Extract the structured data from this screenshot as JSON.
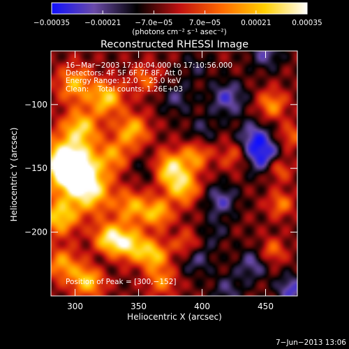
{
  "chart_data": {
    "type": "heatmap",
    "title": "Reconstructed RHESSI Image",
    "xlabel": "Heliocentric X (arcsec)",
    "ylabel": "Heliocentric Y (arcsec)",
    "xlim": [
      281,
      475
    ],
    "ylim": [
      -250,
      -58
    ],
    "x_ticks": [
      300,
      350,
      400,
      450
    ],
    "y_ticks": [
      -100,
      -150,
      -200
    ],
    "colorbar": {
      "min": -0.00035,
      "max": 0.00035,
      "ticks": [
        -0.00035,
        -0.00021,
        -7e-05,
        7e-05,
        0.00021,
        0.00035
      ],
      "tick_labels": [
        "−0.00035",
        "−0.00021",
        "−7.0e−05",
        "7.0e−05",
        "0.00021",
        "0.00035"
      ],
      "unit": "(photons cm⁻² s⁻¹ asec⁻²)",
      "stops": [
        "#1010ff",
        "#6a4aa8",
        "#000000",
        "#c01010",
        "#ff6a00",
        "#ffd000",
        "#ffffff"
      ]
    },
    "annotations": {
      "time_range": "16−Mar−2003 17:10:04.000 to 17:10:56.000",
      "detectors": "Detectors: 4F 5F 6F 7F 8F, Att 0",
      "energy": "Energy Range: 12.0 − 25.0 keV",
      "clean": "Clean:",
      "total_counts": "Total counts: 1.26E+03",
      "peak": "Position of Peak = [300,−152]"
    },
    "peak": {
      "x": 300,
      "y": -152
    },
    "blobs": [
      {
        "x": 292,
        "y": -145,
        "v": 0.00034,
        "s": 14
      },
      {
        "x": 300,
        "y": -152,
        "v": 0.00035,
        "s": 11
      },
      {
        "x": 312,
        "y": -168,
        "v": 0.0003,
        "s": 12
      },
      {
        "x": 288,
        "y": -188,
        "v": 0.00028,
        "s": 10
      },
      {
        "x": 305,
        "y": -118,
        "v": 0.00026,
        "s": 10
      },
      {
        "x": 325,
        "y": -95,
        "v": 0.00028,
        "s": 9
      },
      {
        "x": 300,
        "y": -84,
        "v": 0.00022,
        "s": 10
      },
      {
        "x": 345,
        "y": -120,
        "v": 0.00024,
        "s": 9
      },
      {
        "x": 330,
        "y": -140,
        "v": 0.00018,
        "s": 9
      },
      {
        "x": 328,
        "y": -205,
        "v": 0.00033,
        "s": 9
      },
      {
        "x": 345,
        "y": -210,
        "v": 0.00026,
        "s": 9
      },
      {
        "x": 310,
        "y": -238,
        "v": 0.00027,
        "s": 9
      },
      {
        "x": 345,
        "y": -180,
        "v": 0.00021,
        "s": 9
      },
      {
        "x": 365,
        "y": -185,
        "v": 0.00024,
        "s": 8
      },
      {
        "x": 375,
        "y": -150,
        "v": 0.0003,
        "s": 9
      },
      {
        "x": 385,
        "y": -165,
        "v": 0.00026,
        "s": 9
      },
      {
        "x": 395,
        "y": -140,
        "v": 0.00018,
        "s": 8
      },
      {
        "x": 362,
        "y": -218,
        "v": 0.00025,
        "s": 8
      },
      {
        "x": 368,
        "y": -238,
        "v": 0.00016,
        "s": 8
      },
      {
        "x": 290,
        "y": -225,
        "v": 0.0002,
        "s": 9
      },
      {
        "x": 388,
        "y": -210,
        "v": 0.00014,
        "s": 8
      },
      {
        "x": 455,
        "y": -100,
        "v": 0.00018,
        "s": 8
      },
      {
        "x": 460,
        "y": -150,
        "v": 0.00016,
        "s": 7
      },
      {
        "x": 462,
        "y": -178,
        "v": 0.00015,
        "s": 7
      },
      {
        "x": 470,
        "y": -125,
        "v": 0.00012,
        "s": 7
      },
      {
        "x": 425,
        "y": -140,
        "v": 0.0001,
        "s": 8
      },
      {
        "x": 455,
        "y": -215,
        "v": 0.00014,
        "s": 7
      },
      {
        "x": 355,
        "y": -80,
        "v": 0.00012,
        "s": 8
      },
      {
        "x": 420,
        "y": -95,
        "v": -0.00028,
        "s": 10
      },
      {
        "x": 448,
        "y": -140,
        "v": -0.00035,
        "s": 10
      },
      {
        "x": 440,
        "y": -125,
        "v": -0.00026,
        "s": 9
      },
      {
        "x": 450,
        "y": -60,
        "v": -0.00024,
        "s": 9
      },
      {
        "x": 415,
        "y": -175,
        "v": -0.00026,
        "s": 9
      },
      {
        "x": 470,
        "y": -245,
        "v": -0.0003,
        "s": 8
      },
      {
        "x": 395,
        "y": -220,
        "v": -0.00024,
        "s": 9
      },
      {
        "x": 440,
        "y": -225,
        "v": -0.00024,
        "s": 9
      },
      {
        "x": 380,
        "y": -95,
        "v": -0.0002,
        "s": 9
      },
      {
        "x": 355,
        "y": -150,
        "v": -0.00014,
        "s": 8
      },
      {
        "x": 420,
        "y": -245,
        "v": -0.0002,
        "s": 9
      },
      {
        "x": 410,
        "y": -200,
        "v": -0.00016,
        "s": 8
      },
      {
        "x": 395,
        "y": -70,
        "v": -0.00016,
        "s": 8
      },
      {
        "x": 320,
        "y": -225,
        "v": -0.00012,
        "s": 7
      },
      {
        "x": 400,
        "y": -120,
        "v": -0.00018,
        "s": 8
      }
    ]
  },
  "footer": {
    "date": "7−Jun−2013 13:06"
  }
}
